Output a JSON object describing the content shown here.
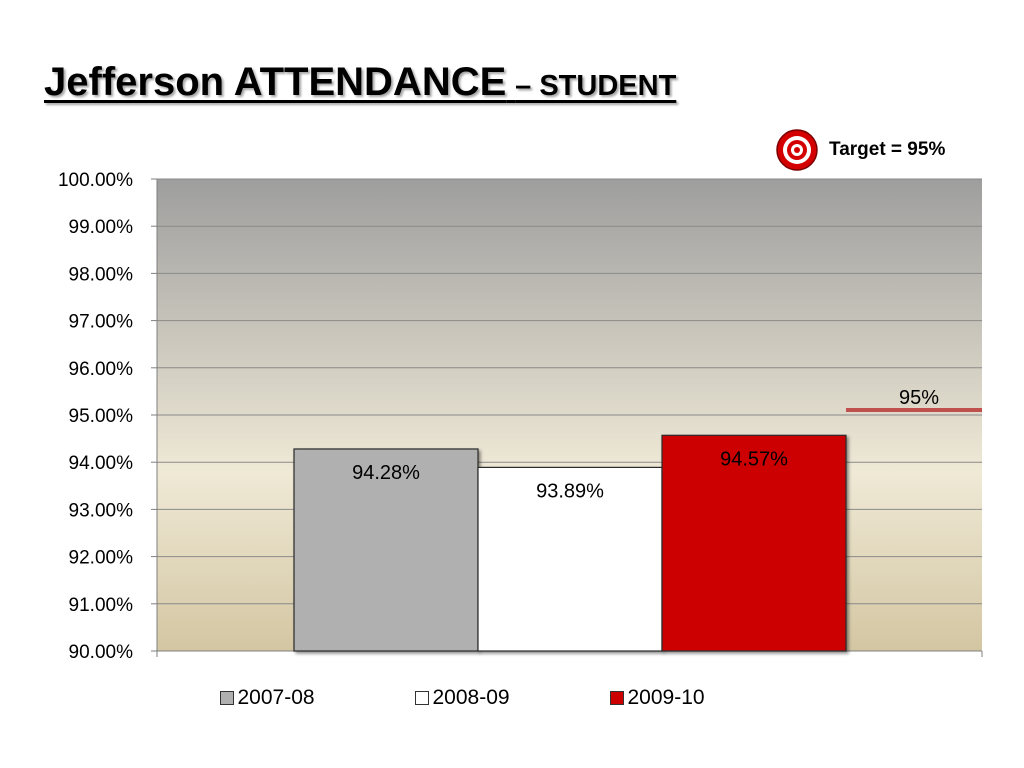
{
  "slide": {
    "title_main": "Jefferson ATTENDANCE",
    "title_sub": "– STUDENT"
  },
  "target": {
    "label": "Target = 95%",
    "icon": "target-icon"
  },
  "colors": {
    "bar_2007_08": "#b0b0b0",
    "bar_2008_09": "#ffffff",
    "bar_2009_10": "#cc0000",
    "target_line": "#c0504d",
    "plot_top": "#9e9e9e",
    "plot_mid": "#efe9d6",
    "plot_bottom": "#d3c6a2"
  },
  "chart_data": {
    "type": "bar",
    "categories": [
      "2007-08",
      "2008-09",
      "2009-10"
    ],
    "values": [
      94.28,
      93.89,
      94.57
    ],
    "data_labels": [
      "94.28%",
      "93.89%",
      "94.57%"
    ],
    "ylim": [
      90,
      100
    ],
    "y_ticks": [
      90,
      91,
      92,
      93,
      94,
      95,
      96,
      97,
      98,
      99,
      100
    ],
    "y_tick_labels": [
      "90.00%",
      "91.00%",
      "92.00%",
      "93.00%",
      "94.00%",
      "95.00%",
      "96.00%",
      "97.00%",
      "98.00%",
      "99.00%",
      "100.00%"
    ],
    "target_value": 95,
    "target_label": "95%",
    "grid": true,
    "legend_position": "bottom",
    "title": "",
    "xlabel": "",
    "ylabel": ""
  }
}
